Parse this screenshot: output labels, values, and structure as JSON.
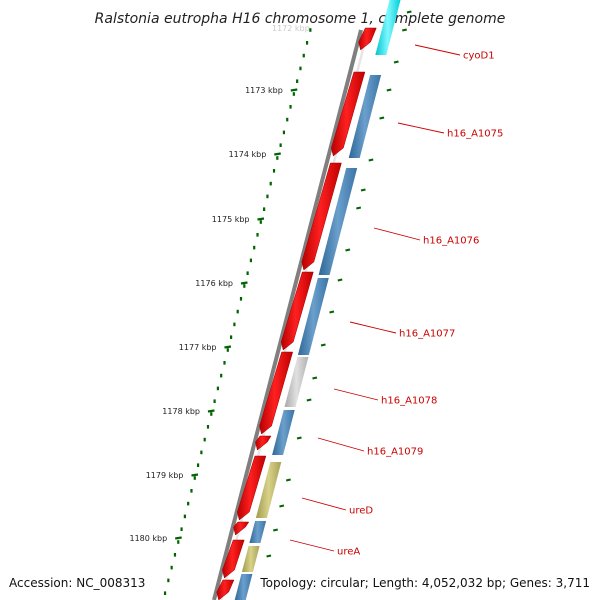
{
  "title": "Ralstonia eutropha H16 chromosome 1, complete genome",
  "partial_top_label": "1172 kbp",
  "accession": "Accession: NC_008313",
  "topology": "Topology: circular; Length: 4,052,032 bp; Genes: 3,711",
  "ticks": [
    "1173 kbp",
    "1174 kbp",
    "1175 kbp",
    "1176 kbp",
    "1177 kbp",
    "1178 kbp",
    "1179 kbp",
    "1180 kbp"
  ],
  "genes": [
    "cyoD1",
    "h16_A1075",
    "h16_A1076",
    "h16_A1077",
    "h16_A1078",
    "h16_A1079",
    "ureD",
    "ureA"
  ],
  "colors": {
    "backbone": "#808080",
    "reverse_gene": "#ff0000",
    "cds_blue": "#4682b4",
    "cds_cyan": "#00e5ee",
    "cds_gray": "#c0c0c0",
    "cds_khaki": "#bdb76b",
    "tick_green": "#006400",
    "label_red": "#cc0000"
  }
}
